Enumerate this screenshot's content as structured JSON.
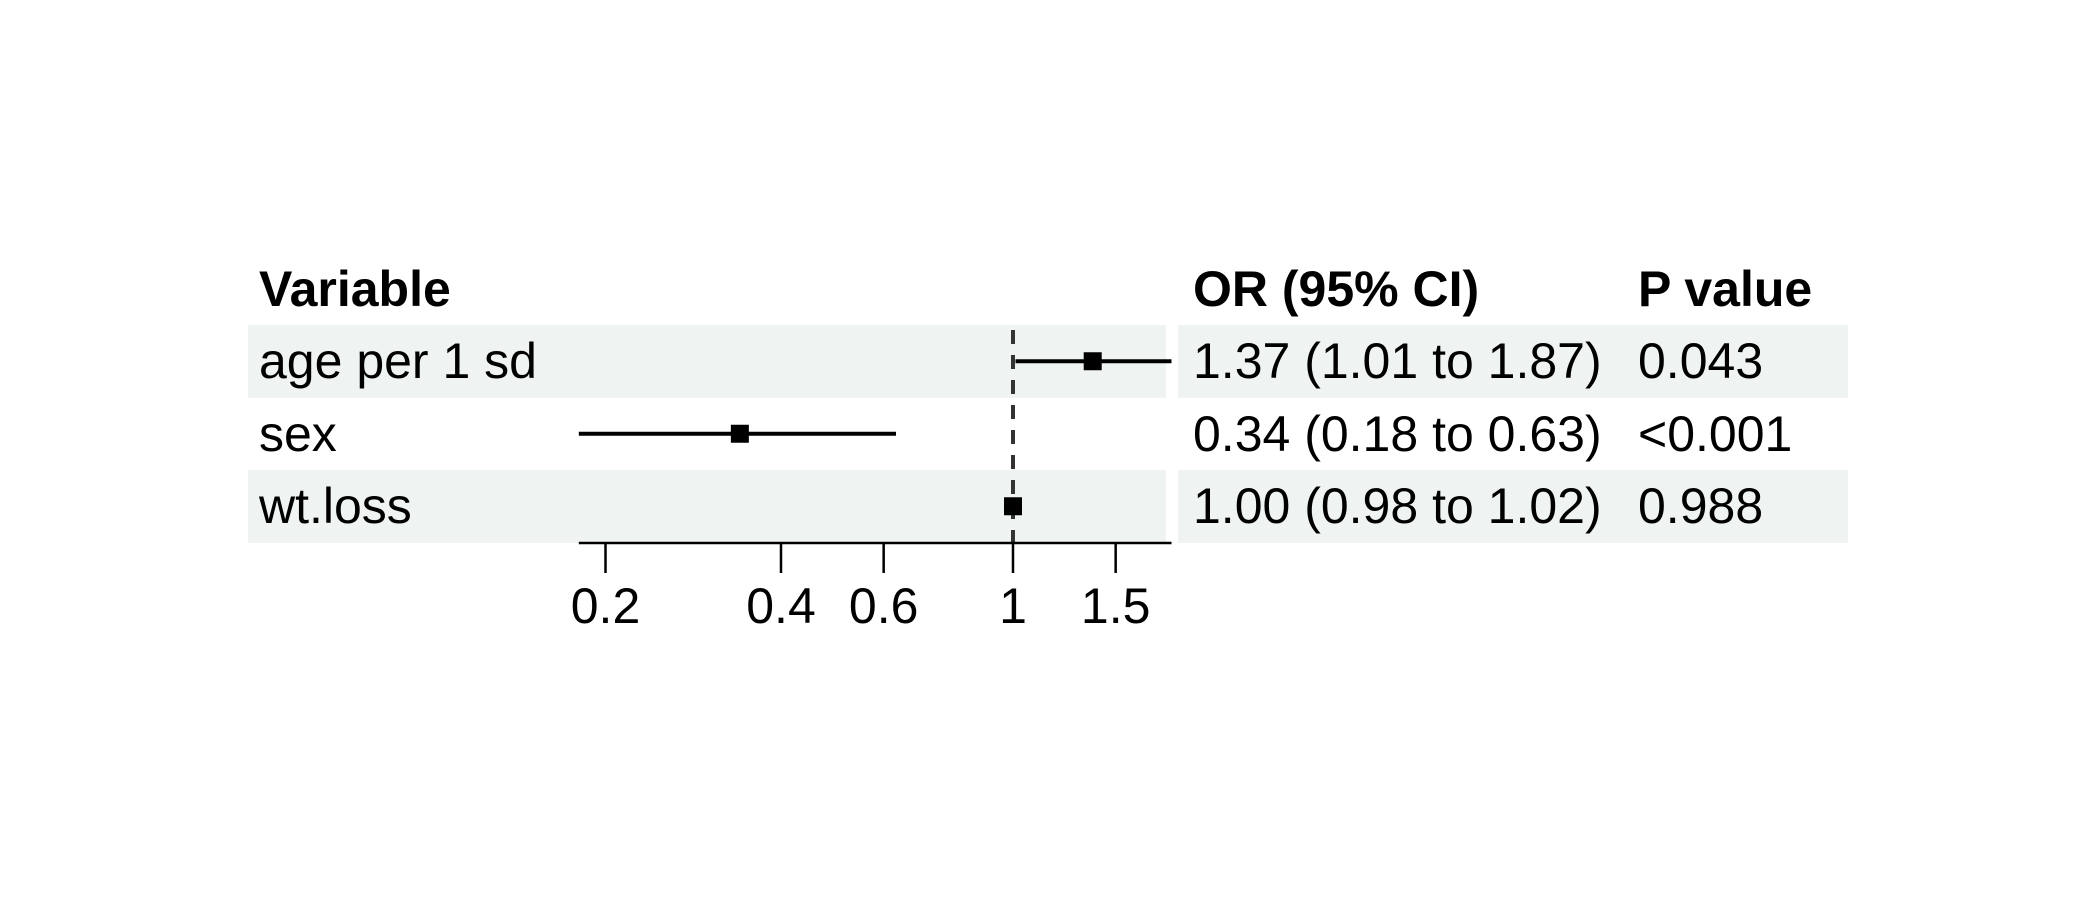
{
  "chart_data": {
    "type": "forest",
    "title": "",
    "legend_position": "none",
    "grid": false,
    "columns": {
      "variable": "Variable",
      "or_ci": "OR (95% CI)",
      "p": "P value"
    },
    "rows": [
      {
        "label": "age per 1 sd",
        "or": 1.37,
        "ci_low": 1.01,
        "ci_high": 1.87,
        "or_ci_text": "1.37 (1.01 to 1.87)",
        "p": "0.043",
        "shaded": true
      },
      {
        "label": "sex",
        "or": 0.34,
        "ci_low": 0.18,
        "ci_high": 0.63,
        "or_ci_text": "0.34 (0.18 to 0.63)",
        "p": "<0.001",
        "shaded": false
      },
      {
        "label": "wt.loss",
        "or": 1.0,
        "ci_low": 0.98,
        "ci_high": 1.02,
        "or_ci_text": "1.00 (0.98 to 1.02)",
        "p": "0.988",
        "shaded": true
      }
    ],
    "x_axis": {
      "scale": "log10",
      "range": [
        0.18,
        1.87
      ],
      "ticks": [
        0.2,
        0.4,
        0.6,
        1,
        1.5
      ],
      "tick_labels": [
        "0.2",
        "0.4",
        "0.6",
        "1",
        "1.5"
      ],
      "reference_line": 1
    },
    "colors": {
      "band": "#eff3f2",
      "marker": "#000000",
      "ci_line": "#000000",
      "reference_line": "#333333",
      "text": "#000000"
    }
  }
}
